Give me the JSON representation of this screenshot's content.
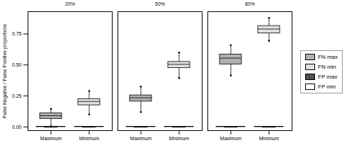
{
  "chart_data": {
    "type": "box",
    "ylabel": "False Negative / False Positive proportions",
    "groups": [
      "20%",
      "50%",
      "80%"
    ],
    "categories": [
      "Maximum",
      "Minimum"
    ],
    "series": [
      {
        "name": "FN max",
        "color": "#b0b0b0",
        "category": "Maximum",
        "marker": "circle",
        "values": [
          {
            "q1": 0.065,
            "median": 0.09,
            "q3": 0.11,
            "whislo": 0.005,
            "whishi": 0.145
          },
          {
            "q1": 0.205,
            "median": 0.235,
            "q3": 0.255,
            "whislo": 0.12,
            "whishi": 0.325
          },
          {
            "q1": 0.505,
            "median": 0.555,
            "q3": 0.585,
            "whislo": 0.415,
            "whishi": 0.66
          }
        ]
      },
      {
        "name": "FN min",
        "color": "#e0e0e0",
        "category": "Minimum",
        "marker": "circle",
        "values": [
          {
            "q1": 0.175,
            "median": 0.205,
            "q3": 0.225,
            "whislo": 0.1,
            "whishi": 0.29
          },
          {
            "q1": 0.475,
            "median": 0.505,
            "q3": 0.525,
            "whislo": 0.395,
            "whishi": 0.6
          },
          {
            "q1": 0.755,
            "median": 0.79,
            "q3": 0.815,
            "whislo": 0.695,
            "whishi": 0.88
          }
        ]
      },
      {
        "name": "FP max",
        "color": "#505050",
        "category": "Maximum",
        "marker": "line",
        "values": [
          {
            "q1": -0.001,
            "median": 0.0,
            "q3": 0.001,
            "whislo": -0.003,
            "whishi": 0.003
          },
          {
            "q1": -0.001,
            "median": 0.0,
            "q3": 0.001,
            "whislo": -0.003,
            "whishi": 0.003
          },
          {
            "q1": -0.001,
            "median": 0.0,
            "q3": 0.001,
            "whislo": -0.003,
            "whishi": 0.003
          }
        ]
      },
      {
        "name": "FP min",
        "color": "#ffffff",
        "category": "Minimum",
        "marker": "line",
        "values": [
          {
            "q1": -0.001,
            "median": 0.0,
            "q3": 0.001,
            "whislo": -0.003,
            "whishi": 0.003
          },
          {
            "q1": -0.001,
            "median": 0.0,
            "q3": 0.001,
            "whislo": -0.003,
            "whishi": 0.003
          },
          {
            "q1": -0.001,
            "median": 0.0,
            "q3": 0.001,
            "whislo": -0.003,
            "whishi": 0.003
          }
        ]
      }
    ],
    "ylim": [
      -0.03,
      0.93
    ],
    "yticks": [
      {
        "value": 0.0,
        "label": "0.00"
      },
      {
        "value": 0.25,
        "label": "0.25"
      },
      {
        "value": 0.5,
        "label": "0.50"
      },
      {
        "value": 0.75,
        "label": "0.75"
      }
    ],
    "grid": false,
    "legend": "right"
  }
}
